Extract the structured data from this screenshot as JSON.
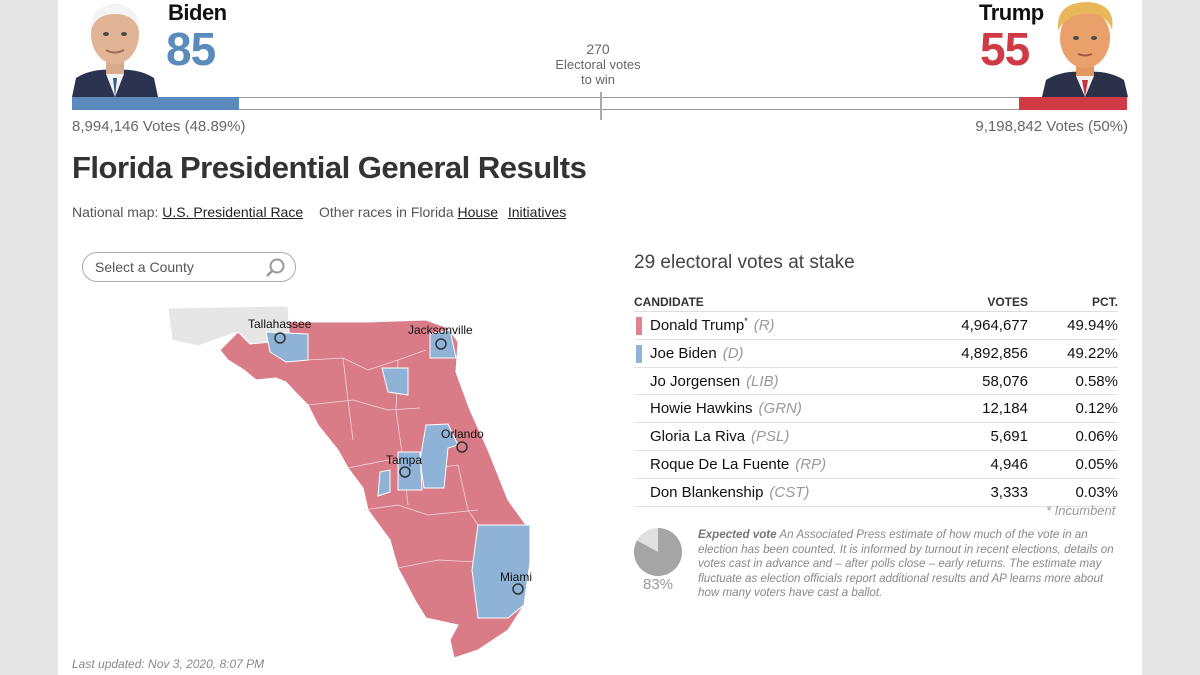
{
  "header": {
    "biden": {
      "name": "Biden",
      "electoral": "85",
      "votes_text": "8,994,146 Votes (48.89%)",
      "color": "#5b8bbd"
    },
    "trump": {
      "name": "Trump",
      "electoral": "55",
      "votes_text": "9,198,842 Votes (50%)",
      "color": "#cf3a45"
    },
    "to_win": {
      "number": "270",
      "line1": "Electoral votes",
      "line2": "to win"
    },
    "progress": {
      "biden_ev": 85,
      "trump_ev": 55,
      "total_ev": 538
    }
  },
  "title": "Florida Presidential General Results",
  "links": {
    "national_label": "National map:",
    "national_link": "U.S. Presidential Race",
    "other_label": "Other races in Florida",
    "house": "House",
    "initiatives": "Initiatives"
  },
  "search": {
    "placeholder": "Select a County",
    "icon": "search-icon"
  },
  "map": {
    "cities": [
      "Tallahassee",
      "Jacksonville",
      "Orlando",
      "Tampa",
      "Miami"
    ],
    "colors": {
      "rep": "#d97c87",
      "dem": "#8fb3d6",
      "neighbor": "#e6e6e6"
    }
  },
  "results": {
    "stake": "29 electoral votes at stake",
    "headers": {
      "candidate": "CANDIDATE",
      "votes": "VOTES",
      "pct": "PCT."
    },
    "rows": [
      {
        "name": "Donald Trump",
        "mark": "*",
        "party": "(R)",
        "votes": "4,964,677",
        "pct": "49.94%",
        "swatch": "#e1848e"
      },
      {
        "name": "Joe Biden",
        "mark": "",
        "party": "(D)",
        "votes": "4,892,856",
        "pct": "49.22%",
        "swatch": "#8fb3d6"
      },
      {
        "name": "Jo Jorgensen",
        "mark": "",
        "party": "(LIB)",
        "votes": "58,076",
        "pct": "0.58%",
        "swatch": ""
      },
      {
        "name": "Howie Hawkins",
        "mark": "",
        "party": "(GRN)",
        "votes": "12,184",
        "pct": "0.12%",
        "swatch": ""
      },
      {
        "name": "Gloria La Riva",
        "mark": "",
        "party": "(PSL)",
        "votes": "5,691",
        "pct": "0.06%",
        "swatch": ""
      },
      {
        "name": "Roque De La Fuente",
        "mark": "",
        "party": "(RP)",
        "votes": "4,946",
        "pct": "0.05%",
        "swatch": ""
      },
      {
        "name": "Don Blankenship",
        "mark": "",
        "party": "(CST)",
        "votes": "3,333",
        "pct": "0.03%",
        "swatch": ""
      }
    ],
    "incumbent_note": "* Incumbent"
  },
  "expected": {
    "fraction": 0.83,
    "pct_text": "83%",
    "label": "Expected vote",
    "text": " An Associated Press estimate of how much of the vote in an election has been counted. It is informed by turnout in recent elections, details on votes cast in advance and – after polls close – early returns. The estimate may fluctuate as election officials report additional results and AP learns more about how many voters have cast a ballot."
  },
  "updated": "Last updated: Nov 3, 2020, 8:07 PM"
}
